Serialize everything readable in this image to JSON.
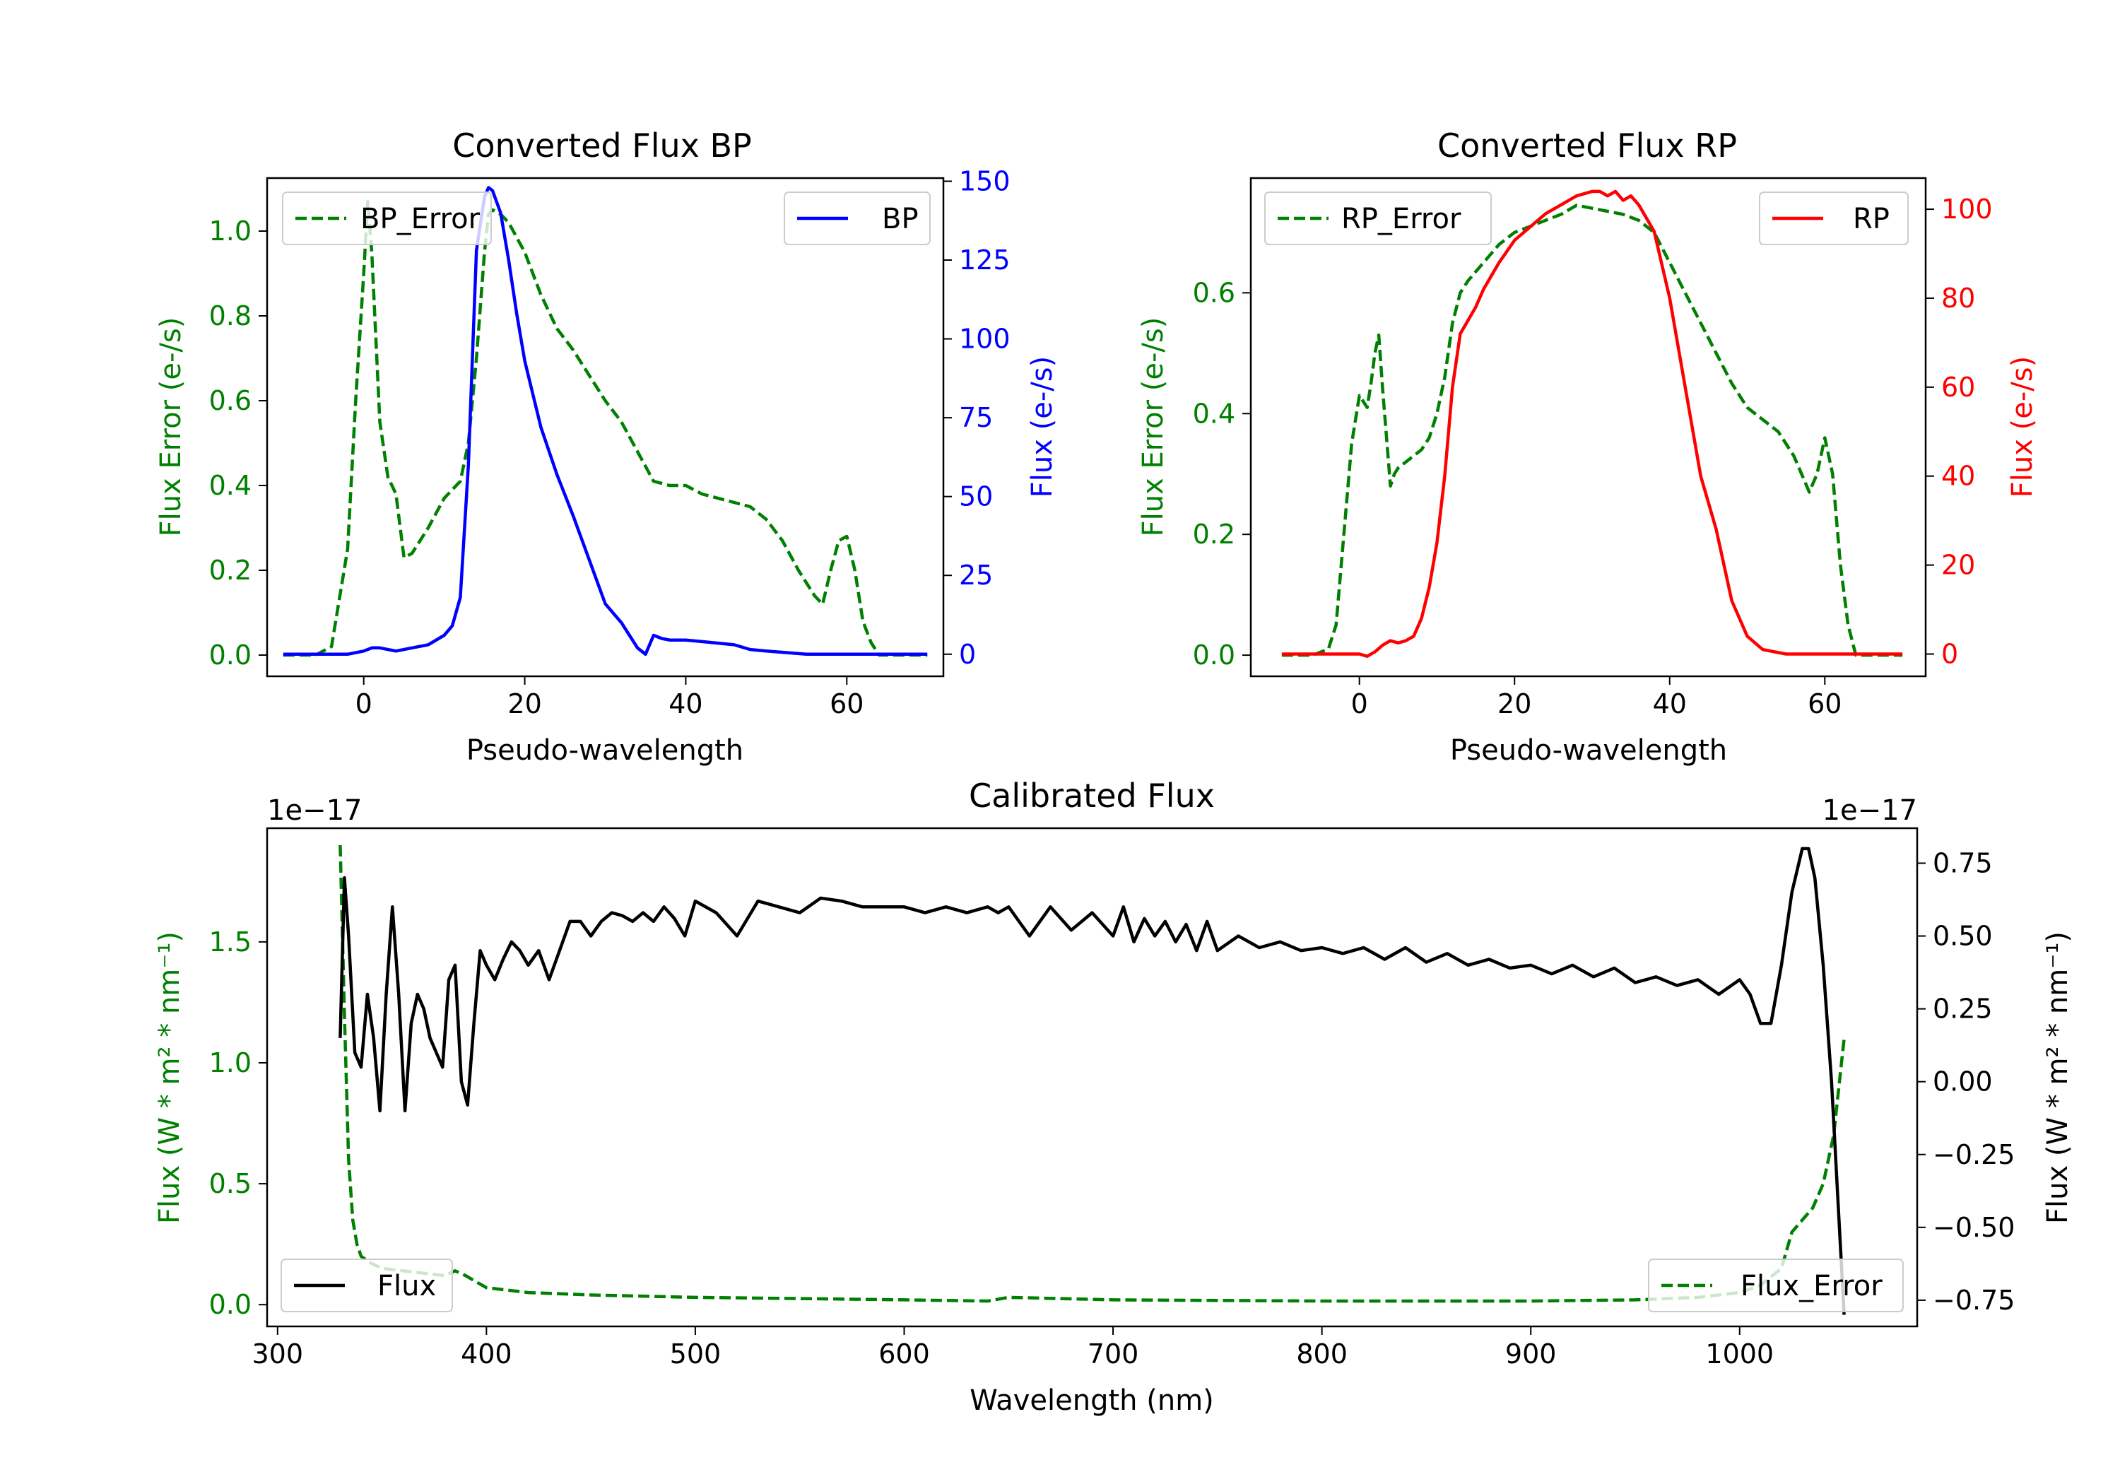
{
  "colors": {
    "axis": "#000000",
    "bp_error": "#008000",
    "bp": "#0000ff",
    "rp_error": "#008000",
    "rp": "#ff0000",
    "flux": "#000000",
    "flux_error": "#008000"
  },
  "chart_data": [
    {
      "id": "bp",
      "type": "line",
      "title": "Converted Flux BP",
      "xlabel": "Pseudo-wavelength",
      "ylabel_left": "Flux Error (e-/s)",
      "ylabel_right": "Flux (e-/s)",
      "xlim": [
        -12,
        72
      ],
      "ylim_left": [
        -0.05,
        1.125
      ],
      "ylim_right": [
        -7,
        151
      ],
      "x_ticks": [
        0,
        20,
        40,
        60
      ],
      "y_ticks_left": [
        0.0,
        0.2,
        0.4,
        0.6,
        0.8,
        1.0
      ],
      "y_ticks_right": [
        0,
        25,
        50,
        75,
        100,
        125,
        150
      ],
      "left_tick_color": "#008000",
      "right_tick_color": "#0000ff",
      "legend_left": "top-left",
      "legend_right": "top-right",
      "series": [
        {
          "name": "BP_Error",
          "axis": "left",
          "style": "dashed",
          "color": "#008000",
          "x": [
            -10,
            -6,
            -4,
            -2,
            -1,
            0,
            0.5,
            1,
            2,
            3,
            4,
            5,
            6,
            8,
            10,
            12,
            13,
            14,
            15,
            15.5,
            16,
            17,
            18,
            20,
            22,
            24,
            26,
            28,
            30,
            32,
            34,
            36,
            38,
            40,
            42,
            44,
            46,
            48,
            50,
            52,
            54,
            56,
            57,
            58,
            59,
            60,
            61,
            62,
            63,
            64,
            66,
            68,
            70
          ],
          "values": [
            0.0,
            0.0,
            0.02,
            0.25,
            0.6,
            0.9,
            1.07,
            0.95,
            0.55,
            0.42,
            0.38,
            0.23,
            0.24,
            0.3,
            0.37,
            0.41,
            0.5,
            0.7,
            0.95,
            1.04,
            1.05,
            1.04,
            1.02,
            0.95,
            0.85,
            0.77,
            0.72,
            0.66,
            0.6,
            0.55,
            0.48,
            0.41,
            0.4,
            0.4,
            0.38,
            0.37,
            0.36,
            0.35,
            0.32,
            0.27,
            0.2,
            0.14,
            0.12,
            0.2,
            0.27,
            0.28,
            0.2,
            0.08,
            0.03,
            0.0,
            0.0,
            0.0,
            0.0
          ]
        },
        {
          "name": "BP",
          "axis": "right",
          "style": "solid",
          "color": "#0000ff",
          "x": [
            -10,
            -6,
            -2,
            0,
            1,
            2,
            3,
            4,
            6,
            8,
            10,
            11,
            12,
            13,
            14,
            15,
            15.5,
            16,
            17,
            18,
            19,
            20,
            22,
            24,
            26,
            28,
            30,
            31,
            32,
            33,
            34,
            35,
            36,
            37,
            38,
            40,
            42,
            44,
            46,
            48,
            50,
            55,
            60,
            65,
            70
          ],
          "values": [
            0,
            0,
            0,
            1,
            2,
            2,
            1.5,
            1,
            2,
            3,
            6,
            9,
            18,
            60,
            128,
            145,
            148,
            147,
            140,
            125,
            108,
            93,
            72,
            57,
            44,
            30,
            16,
            13,
            10,
            6,
            2,
            0,
            6,
            5,
            4.5,
            4.5,
            4,
            3.5,
            3,
            1.5,
            1,
            0,
            0,
            0,
            0
          ]
        }
      ]
    },
    {
      "id": "rp",
      "type": "line",
      "title": "Converted Flux RP",
      "xlabel": "Pseudo-wavelength",
      "ylabel_left": "Flux Error (e-/s)",
      "ylabel_right": "Flux (e-/s)",
      "xlim": [
        -14,
        73
      ],
      "ylim_left": [
        -0.035,
        0.79
      ],
      "ylim_right": [
        -5,
        107
      ],
      "x_ticks": [
        0,
        20,
        40,
        60
      ],
      "y_ticks_left": [
        0.0,
        0.2,
        0.4,
        0.6
      ],
      "y_ticks_right": [
        0,
        20,
        40,
        60,
        80,
        100
      ],
      "left_tick_color": "#008000",
      "right_tick_color": "#ff0000",
      "legend_left": "top-left",
      "legend_right": "top-right",
      "series": [
        {
          "name": "RP_Error",
          "axis": "left",
          "style": "dashed",
          "color": "#008000",
          "x": [
            -10,
            -6,
            -4,
            -3,
            -2,
            -1,
            0,
            1,
            1.5,
            2,
            2.5,
            3,
            4,
            4.5,
            5,
            6,
            7,
            8,
            9,
            10,
            11,
            12,
            13,
            14,
            16,
            18,
            20,
            22,
            24,
            26,
            28,
            30,
            32,
            34,
            36,
            38,
            40,
            42,
            44,
            46,
            48,
            50,
            52,
            54,
            55,
            56,
            57,
            58,
            59,
            60,
            61,
            62,
            63,
            64,
            66,
            70
          ],
          "values": [
            0.0,
            0.0,
            0.01,
            0.05,
            0.2,
            0.35,
            0.43,
            0.41,
            0.45,
            0.5,
            0.53,
            0.44,
            0.28,
            0.3,
            0.31,
            0.32,
            0.33,
            0.34,
            0.36,
            0.4,
            0.46,
            0.55,
            0.6,
            0.62,
            0.65,
            0.68,
            0.7,
            0.71,
            0.72,
            0.73,
            0.745,
            0.74,
            0.735,
            0.73,
            0.72,
            0.7,
            0.65,
            0.6,
            0.55,
            0.5,
            0.45,
            0.41,
            0.39,
            0.37,
            0.35,
            0.33,
            0.3,
            0.27,
            0.3,
            0.36,
            0.3,
            0.15,
            0.05,
            0.0,
            0.0,
            0.0
          ]
        },
        {
          "name": "RP",
          "axis": "right",
          "style": "solid",
          "color": "#ff0000",
          "x": [
            -10,
            -4,
            0,
            1,
            2,
            3,
            4,
            5,
            6,
            7,
            8,
            9,
            10,
            11,
            12,
            13,
            14,
            15,
            16,
            18,
            20,
            22,
            24,
            26,
            28,
            30,
            31,
            32,
            33,
            34,
            35,
            36,
            38,
            40,
            42,
            44,
            46,
            48,
            50,
            52,
            55,
            58,
            60,
            65,
            70
          ],
          "values": [
            0,
            0,
            0,
            -0.5,
            0.5,
            2,
            3,
            2.5,
            3,
            4,
            8,
            15,
            25,
            40,
            60,
            72,
            75,
            78,
            82,
            88,
            93,
            96,
            99,
            101,
            103,
            104,
            104,
            103,
            104,
            102,
            103,
            101,
            95,
            80,
            60,
            40,
            28,
            12,
            4,
            1,
            0,
            0,
            0,
            0,
            0
          ]
        }
      ]
    },
    {
      "id": "calibrated",
      "type": "line",
      "title": "Calibrated Flux",
      "xlabel": "Wavelength (nm)",
      "ylabel_left": "Flux (W * m² * nm⁻¹)",
      "ylabel_right": "Flux (W * m² * nm⁻¹)",
      "offset_left": "1e−17",
      "offset_right": "1e−17",
      "xlim": [
        295,
        1085
      ],
      "ylim_left": [
        -0.09,
        1.97
      ],
      "ylim_right": [
        -0.84,
        0.87
      ],
      "x_ticks": [
        300,
        400,
        500,
        600,
        700,
        800,
        900,
        1000
      ],
      "y_ticks_left": [
        0.0,
        0.5,
        1.0,
        1.5
      ],
      "y_ticks_left_labels": [
        "0.0",
        "0.5",
        "1.0",
        "1.5"
      ],
      "y_ticks_right": [
        -0.75,
        -0.5,
        -0.25,
        0.0,
        0.25,
        0.5,
        0.75
      ],
      "y_ticks_right_labels": [
        "−0.75",
        "−0.50",
        "−0.25",
        "0.00",
        "0.25",
        "0.50",
        "0.75"
      ],
      "left_tick_color": "#008000",
      "right_tick_color": "#000000",
      "legend_left": "bottom-left",
      "legend_right": "bottom-right",
      "series": [
        {
          "name": "Flux_Error",
          "axis": "left",
          "style": "dashed",
          "color": "#008000",
          "x": [
            330,
            332,
            334,
            336,
            338,
            340,
            345,
            350,
            360,
            370,
            380,
            385,
            390,
            400,
            420,
            450,
            500,
            550,
            600,
            640,
            650,
            700,
            800,
            900,
            950,
            980,
            1000,
            1010,
            1020,
            1025,
            1030,
            1035,
            1040,
            1045,
            1050
          ],
          "values": [
            1.9,
            1.2,
            0.6,
            0.35,
            0.25,
            0.2,
            0.17,
            0.15,
            0.14,
            0.13,
            0.12,
            0.14,
            0.12,
            0.07,
            0.05,
            0.04,
            0.03,
            0.025,
            0.02,
            0.015,
            0.03,
            0.02,
            0.015,
            0.015,
            0.02,
            0.03,
            0.05,
            0.08,
            0.15,
            0.3,
            0.35,
            0.4,
            0.5,
            0.7,
            1.1
          ]
        },
        {
          "name": "Flux",
          "axis": "right",
          "style": "solid",
          "color": "#000000",
          "x": [
            330,
            332,
            334,
            337,
            340,
            343,
            346,
            349,
            352,
            355,
            358,
            361,
            364,
            367,
            370,
            373,
            376,
            379,
            382,
            385,
            388,
            391,
            394,
            397,
            400,
            404,
            408,
            412,
            416,
            420,
            425,
            430,
            435,
            440,
            445,
            450,
            455,
            460,
            465,
            470,
            475,
            480,
            485,
            490,
            495,
            500,
            510,
            520,
            530,
            540,
            550,
            560,
            570,
            580,
            590,
            600,
            610,
            620,
            630,
            640,
            645,
            650,
            660,
            670,
            680,
            690,
            700,
            705,
            710,
            715,
            720,
            725,
            730,
            735,
            740,
            745,
            750,
            760,
            770,
            780,
            790,
            800,
            810,
            820,
            830,
            840,
            850,
            860,
            870,
            880,
            890,
            900,
            910,
            920,
            930,
            940,
            950,
            960,
            970,
            980,
            990,
            1000,
            1005,
            1010,
            1015,
            1020,
            1025,
            1030,
            1033,
            1036,
            1040,
            1044,
            1050
          ],
          "values": [
            0.15,
            0.7,
            0.5,
            0.1,
            0.05,
            0.3,
            0.15,
            -0.1,
            0.3,
            0.6,
            0.3,
            -0.1,
            0.2,
            0.3,
            0.25,
            0.15,
            0.1,
            0.05,
            0.35,
            0.4,
            0.0,
            -0.08,
            0.2,
            0.45,
            0.4,
            0.35,
            0.42,
            0.48,
            0.45,
            0.4,
            0.45,
            0.35,
            0.45,
            0.55,
            0.55,
            0.5,
            0.55,
            0.58,
            0.57,
            0.55,
            0.58,
            0.55,
            0.6,
            0.56,
            0.5,
            0.62,
            0.58,
            0.5,
            0.62,
            0.6,
            0.58,
            0.63,
            0.62,
            0.6,
            0.6,
            0.6,
            0.58,
            0.6,
            0.58,
            0.6,
            0.58,
            0.6,
            0.5,
            0.6,
            0.52,
            0.58,
            0.5,
            0.6,
            0.48,
            0.56,
            0.5,
            0.55,
            0.48,
            0.54,
            0.45,
            0.55,
            0.45,
            0.5,
            0.46,
            0.48,
            0.45,
            0.46,
            0.44,
            0.46,
            0.42,
            0.46,
            0.41,
            0.44,
            0.4,
            0.42,
            0.39,
            0.4,
            0.37,
            0.4,
            0.36,
            0.39,
            0.34,
            0.36,
            0.33,
            0.35,
            0.3,
            0.35,
            0.3,
            0.2,
            0.2,
            0.4,
            0.65,
            0.8,
            0.8,
            0.7,
            0.4,
            0.0,
            -0.8
          ]
        }
      ]
    }
  ]
}
